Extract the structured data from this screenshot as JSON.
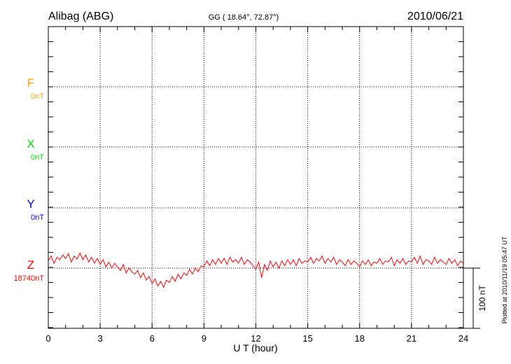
{
  "chart_data": {
    "type": "line",
    "title": "Alibag (ABG)",
    "subtitle": "GG ( 18.64°,  72.87°)",
    "date": "2010/06/21",
    "xlabel": "U T (hour)",
    "xlim": [
      0,
      24
    ],
    "xticks": [
      "0",
      "3",
      "6",
      "9",
      "12",
      "15",
      "18",
      "21",
      "24"
    ],
    "scale_label": "100 nT",
    "plotted_note": "Plotted at 2010/11/19 05:47 UT",
    "components": [
      {
        "name": "F",
        "baseline": "0nT",
        "color": "#FFA500"
      },
      {
        "name": "X",
        "baseline": "0nT",
        "color": "#00DD00"
      },
      {
        "name": "Y",
        "baseline": "0nT",
        "color": "#0000FF"
      },
      {
        "name": "Z",
        "baseline": "18740nT",
        "color": "#FF0000"
      }
    ],
    "series": [
      {
        "name": "Z",
        "unit": "nT offset from 18740nT",
        "x_step_hours": 0.16667,
        "values": [
          12,
          20,
          8,
          18,
          14,
          22,
          16,
          24,
          10,
          20,
          15,
          25,
          14,
          22,
          10,
          18,
          8,
          16,
          6,
          14,
          2,
          10,
          0,
          8,
          2,
          -4,
          6,
          -8,
          0,
          -6,
          -10,
          -4,
          -16,
          -8,
          -20,
          -14,
          -26,
          -18,
          -30,
          -22,
          -32,
          -20,
          -24,
          -14,
          -22,
          -10,
          -18,
          -8,
          -12,
          -2,
          -10,
          0,
          -6,
          4,
          2,
          12,
          4,
          14,
          6,
          16,
          8,
          16,
          6,
          18,
          10,
          14,
          8,
          18,
          6,
          14,
          10,
          4,
          -2,
          10,
          -16,
          6,
          -4,
          12,
          2,
          10,
          0,
          12,
          4,
          14,
          6,
          14,
          4,
          16,
          8,
          12,
          10,
          18,
          8,
          16,
          12,
          20,
          8,
          16,
          10,
          18,
          6,
          14,
          10,
          4,
          14,
          6,
          12,
          8,
          2,
          12,
          6,
          14,
          4,
          10,
          8,
          16,
          6,
          12,
          10,
          18,
          4,
          14,
          8,
          16,
          6,
          12,
          10,
          18,
          8,
          20,
          6,
          14,
          12,
          6,
          18,
          8,
          14,
          10,
          6,
          16,
          8,
          14,
          4,
          12,
          8
        ]
      }
    ]
  }
}
